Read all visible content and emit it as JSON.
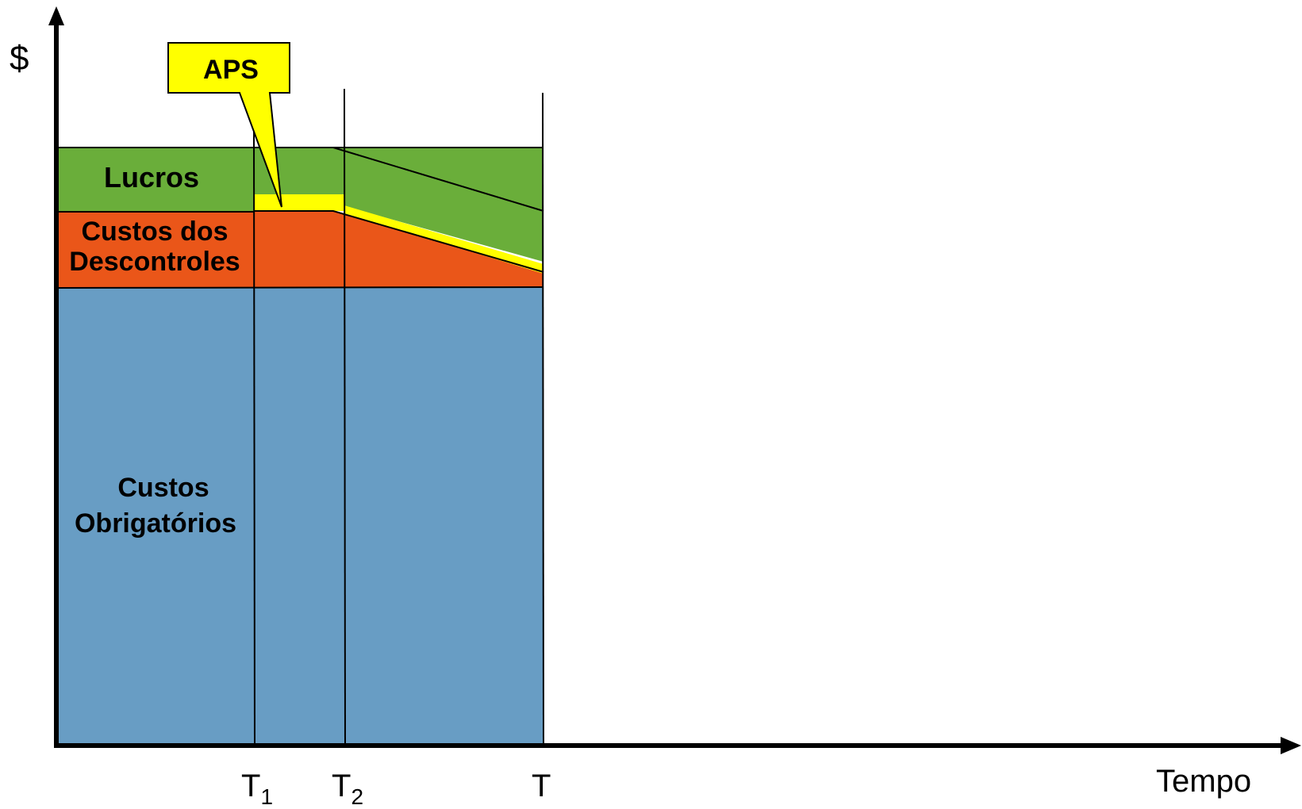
{
  "axes": {
    "y_label": "$",
    "x_label": "Tempo"
  },
  "markers": [
    {
      "base": "T",
      "sub": "1"
    },
    {
      "base": "T",
      "sub": "2"
    },
    {
      "base": "T",
      "sub": ""
    }
  ],
  "regions": {
    "lucros": "Lucros",
    "descontroles_line1": "Custos dos",
    "descontroles_line2": "Descontroles",
    "obrigatorios_line1": "Custos",
    "obrigatorios_line2": "Obrigatórios"
  },
  "callout": {
    "label": "APS"
  },
  "colors": {
    "lucros": "#6aae3a",
    "descontroles": "#ea5619",
    "obrigatorios": "#689dc4",
    "aps": "#ffff00",
    "callout_text": "#1f3a6e",
    "axis": "#000000"
  }
}
